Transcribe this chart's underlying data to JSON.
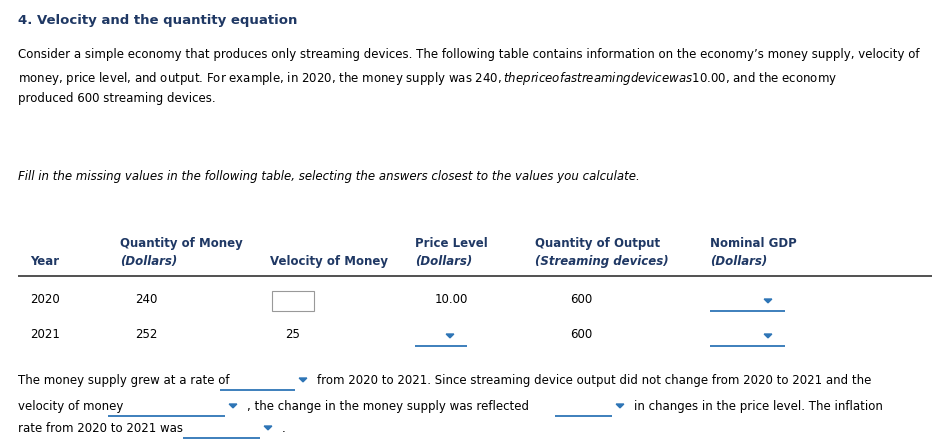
{
  "title": "4. Velocity and the quantity equation",
  "title_color": "#1F3864",
  "body_text_1": "Consider a simple economy that produces only streaming devices. The following table contains information on the economy’s money supply, velocity of",
  "body_text_2": "money, price level, and output. For example, in 2020, the money supply was $240, the price of a streaming device was $10.00, and the economy",
  "body_text_3": "produced 600 streaming devices.",
  "fill_text": "Fill in the missing values in the following table, selecting the answers closest to the values you calculate.",
  "header_col1_r1": "Quantity of Money",
  "header_col3_r1": "Price Level",
  "header_col4_r1": "Quantity of Output",
  "header_col5_r1": "Nominal GDP",
  "header_year": "Year",
  "header_dollars1": "(Dollars)",
  "header_vel": "Velocity of Money",
  "header_dollars2": "(Dollars)",
  "header_streaming": "(Streaming devices)",
  "header_dollars3": "(Dollars)",
  "r1_year": "2020",
  "r1_money": "240",
  "r1_price": "10.00",
  "r1_output": "600",
  "r2_year": "2021",
  "r2_money": "252",
  "r2_vel": "25",
  "r2_output": "600",
  "footer_1a": "The money supply grew at a rate of",
  "footer_1b": "from 2020 to 2021. Since streaming device output did not change from 2020 to 2021 and the",
  "footer_2a": "velocity of money",
  "footer_2b": ", the change in the money supply was reflected",
  "footer_2c": "in changes in the price level. The inflation",
  "footer_3a": "rate from 2020 to 2021 was",
  "footer_3b": ".",
  "text_color": "#000000",
  "header_color": "#1F3864",
  "dropdown_color": "#2E75B6",
  "line_color": "#2E75B6",
  "box_edge_color": "#999999",
  "bg_color": "#ffffff",
  "font_size_title": 9.5,
  "font_size_body": 8.5,
  "font_size_table": 8.5
}
